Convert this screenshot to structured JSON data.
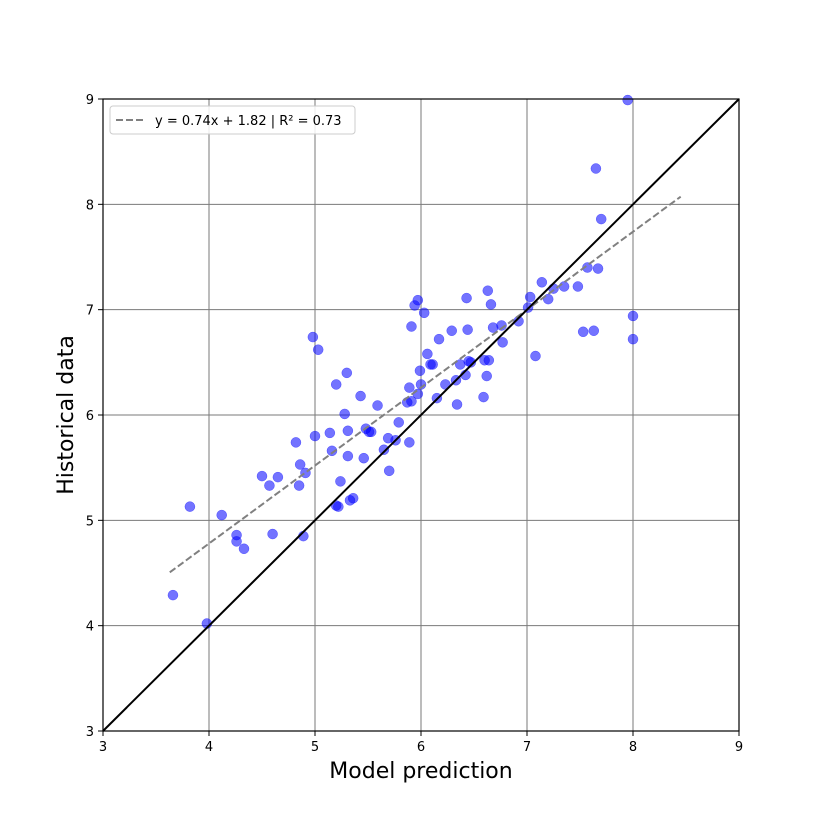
{
  "chart_data": {
    "type": "scatter",
    "title": "",
    "xlabel": "Model prediction",
    "ylabel": "Historical data",
    "xlim": [
      3,
      9
    ],
    "ylim": [
      3,
      9
    ],
    "xticks": [
      "3",
      "4",
      "5",
      "6",
      "7",
      "8",
      "9"
    ],
    "yticks": [
      "3",
      "4",
      "5",
      "6",
      "7",
      "8",
      "9"
    ],
    "grid": true,
    "legend_position": "top-left",
    "legend_label": "y = 0.74x + 1.82 | R² = 0.73",
    "point_color": "#0000ff",
    "fit_line_color": "#808080",
    "identity_line_color": "#000000",
    "identity_line": {
      "x": [
        3,
        9
      ],
      "y": [
        3,
        9
      ]
    },
    "fit_line": {
      "slope": 0.74,
      "intercept": 1.82,
      "x_range": [
        3.63,
        8.45
      ]
    },
    "points": [
      {
        "x": 3.66,
        "y": 4.29
      },
      {
        "x": 3.82,
        "y": 5.13
      },
      {
        "x": 3.98,
        "y": 4.02
      },
      {
        "x": 4.12,
        "y": 5.05
      },
      {
        "x": 4.26,
        "y": 4.86
      },
      {
        "x": 4.26,
        "y": 4.8
      },
      {
        "x": 4.33,
        "y": 4.73
      },
      {
        "x": 4.5,
        "y": 5.42
      },
      {
        "x": 4.57,
        "y": 5.33
      },
      {
        "x": 4.6,
        "y": 4.87
      },
      {
        "x": 4.65,
        "y": 5.41
      },
      {
        "x": 4.82,
        "y": 5.74
      },
      {
        "x": 4.85,
        "y": 5.33
      },
      {
        "x": 4.86,
        "y": 5.53
      },
      {
        "x": 4.89,
        "y": 4.85
      },
      {
        "x": 4.91,
        "y": 5.45
      },
      {
        "x": 4.98,
        "y": 6.74
      },
      {
        "x": 5.0,
        "y": 5.8
      },
      {
        "x": 5.03,
        "y": 6.62
      },
      {
        "x": 5.14,
        "y": 5.83
      },
      {
        "x": 5.16,
        "y": 5.66
      },
      {
        "x": 5.2,
        "y": 5.14
      },
      {
        "x": 5.2,
        "y": 6.29
      },
      {
        "x": 5.22,
        "y": 5.13
      },
      {
        "x": 5.24,
        "y": 5.37
      },
      {
        "x": 5.28,
        "y": 6.01
      },
      {
        "x": 5.3,
        "y": 6.4
      },
      {
        "x": 5.31,
        "y": 5.85
      },
      {
        "x": 5.31,
        "y": 5.61
      },
      {
        "x": 5.33,
        "y": 5.19
      },
      {
        "x": 5.36,
        "y": 5.21
      },
      {
        "x": 5.43,
        "y": 6.18
      },
      {
        "x": 5.46,
        "y": 5.59
      },
      {
        "x": 5.48,
        "y": 5.87
      },
      {
        "x": 5.51,
        "y": 5.84
      },
      {
        "x": 5.53,
        "y": 5.84
      },
      {
        "x": 5.59,
        "y": 6.09
      },
      {
        "x": 5.65,
        "y": 5.67
      },
      {
        "x": 5.69,
        "y": 5.78
      },
      {
        "x": 5.7,
        "y": 5.47
      },
      {
        "x": 5.76,
        "y": 5.76
      },
      {
        "x": 5.79,
        "y": 5.93
      },
      {
        "x": 5.87,
        "y": 6.12
      },
      {
        "x": 5.89,
        "y": 6.26
      },
      {
        "x": 5.89,
        "y": 5.74
      },
      {
        "x": 5.91,
        "y": 6.84
      },
      {
        "x": 5.91,
        "y": 6.13
      },
      {
        "x": 5.94,
        "y": 7.04
      },
      {
        "x": 5.97,
        "y": 7.09
      },
      {
        "x": 5.97,
        "y": 6.2
      },
      {
        "x": 5.99,
        "y": 6.42
      },
      {
        "x": 6.0,
        "y": 6.29
      },
      {
        "x": 6.03,
        "y": 6.97
      },
      {
        "x": 6.06,
        "y": 6.58
      },
      {
        "x": 6.09,
        "y": 6.48
      },
      {
        "x": 6.11,
        "y": 6.48
      },
      {
        "x": 6.15,
        "y": 6.16
      },
      {
        "x": 6.17,
        "y": 6.72
      },
      {
        "x": 6.23,
        "y": 6.29
      },
      {
        "x": 6.29,
        "y": 6.8
      },
      {
        "x": 6.33,
        "y": 6.33
      },
      {
        "x": 6.34,
        "y": 6.1
      },
      {
        "x": 6.37,
        "y": 6.48
      },
      {
        "x": 6.42,
        "y": 6.38
      },
      {
        "x": 6.43,
        "y": 7.11
      },
      {
        "x": 6.44,
        "y": 6.81
      },
      {
        "x": 6.45,
        "y": 6.51
      },
      {
        "x": 6.47,
        "y": 6.5
      },
      {
        "x": 6.59,
        "y": 6.17
      },
      {
        "x": 6.6,
        "y": 6.52
      },
      {
        "x": 6.62,
        "y": 6.37
      },
      {
        "x": 6.63,
        "y": 7.18
      },
      {
        "x": 6.64,
        "y": 6.52
      },
      {
        "x": 6.66,
        "y": 7.05
      },
      {
        "x": 6.68,
        "y": 6.83
      },
      {
        "x": 6.76,
        "y": 6.85
      },
      {
        "x": 6.77,
        "y": 6.69
      },
      {
        "x": 6.92,
        "y": 6.89
      },
      {
        "x": 7.01,
        "y": 7.02
      },
      {
        "x": 7.03,
        "y": 7.12
      },
      {
        "x": 7.08,
        "y": 6.56
      },
      {
        "x": 7.14,
        "y": 7.26
      },
      {
        "x": 7.2,
        "y": 7.1
      },
      {
        "x": 7.25,
        "y": 7.2
      },
      {
        "x": 7.35,
        "y": 7.22
      },
      {
        "x": 7.48,
        "y": 7.22
      },
      {
        "x": 7.53,
        "y": 6.79
      },
      {
        "x": 7.57,
        "y": 7.4
      },
      {
        "x": 7.63,
        "y": 6.8
      },
      {
        "x": 7.65,
        "y": 8.34
      },
      {
        "x": 7.67,
        "y": 7.39
      },
      {
        "x": 7.7,
        "y": 7.86
      },
      {
        "x": 7.95,
        "y": 8.99
      },
      {
        "x": 8.0,
        "y": 6.94
      },
      {
        "x": 8.0,
        "y": 6.72
      }
    ]
  }
}
